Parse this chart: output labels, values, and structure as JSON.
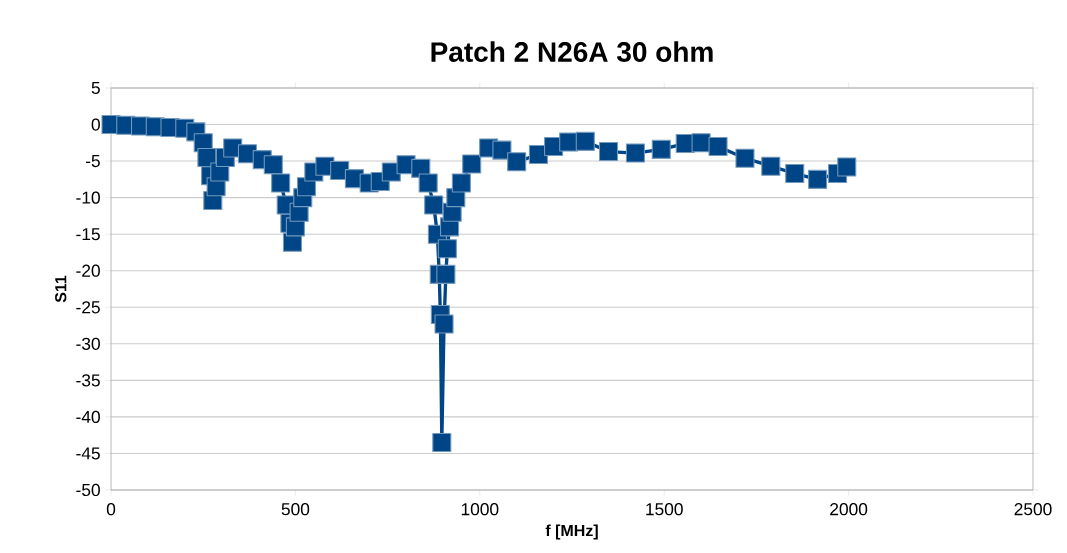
{
  "chart_data": {
    "type": "line",
    "title": "Patch 2 N26A 30 ohm",
    "xlabel": "f [MHz]",
    "ylabel": "S11",
    "xlim": [
      0,
      2500
    ],
    "xticks": [
      0,
      500,
      1000,
      1500,
      2000,
      2500
    ],
    "ylim": [
      -50,
      5
    ],
    "yticks": [
      -50,
      -45,
      -40,
      -35,
      -30,
      -25,
      -20,
      -15,
      -10,
      -5,
      0,
      5
    ],
    "grid": "y",
    "marker": "square",
    "line_style": "solid",
    "series": [
      {
        "color": "#004586",
        "x": [
          0,
          40,
          80,
          120,
          160,
          200,
          230,
          250,
          260,
          270,
          276,
          285,
          295,
          310,
          330,
          370,
          410,
          440,
          460,
          475,
          485,
          492,
          500,
          510,
          520,
          530,
          550,
          580,
          620,
          660,
          700,
          730,
          760,
          800,
          840,
          860,
          875,
          885,
          890,
          893,
          897,
          903,
          908,
          912,
          918,
          925,
          935,
          950,
          978,
          1024,
          1060,
          1100,
          1159,
          1200,
          1241,
          1286,
          1349,
          1422,
          1492,
          1557,
          1600,
          1646,
          1719,
          1789,
          1854,
          1916,
          1970,
          1995
        ],
        "values": [
          0,
          -0.1,
          -0.2,
          -0.3,
          -0.4,
          -0.5,
          -1.0,
          -2.5,
          -4.5,
          -7.0,
          -10.4,
          -8.5,
          -6.5,
          -4.5,
          -3.2,
          -4.0,
          -4.8,
          -5.5,
          -8,
          -11,
          -13.5,
          -16.1,
          -14,
          -12,
          -10,
          -8.5,
          -6.5,
          -5.7,
          -6.3,
          -7.4,
          -8.0,
          -7.8,
          -6.5,
          -5.5,
          -6,
          -8,
          -11,
          -15,
          -20.5,
          -26,
          -43.5,
          -27.3,
          -20.5,
          -17,
          -14,
          -12,
          -10,
          -8,
          -5.4,
          -3.2,
          -3.5,
          -5.1,
          -4.1,
          -3,
          -2.4,
          -2.3,
          -3.7,
          -3.9,
          -3.4,
          -2.6,
          -2.5,
          -3.0,
          -4.6,
          -5.7,
          -6.7,
          -7.5,
          -6.7,
          -5.8
        ]
      }
    ]
  }
}
